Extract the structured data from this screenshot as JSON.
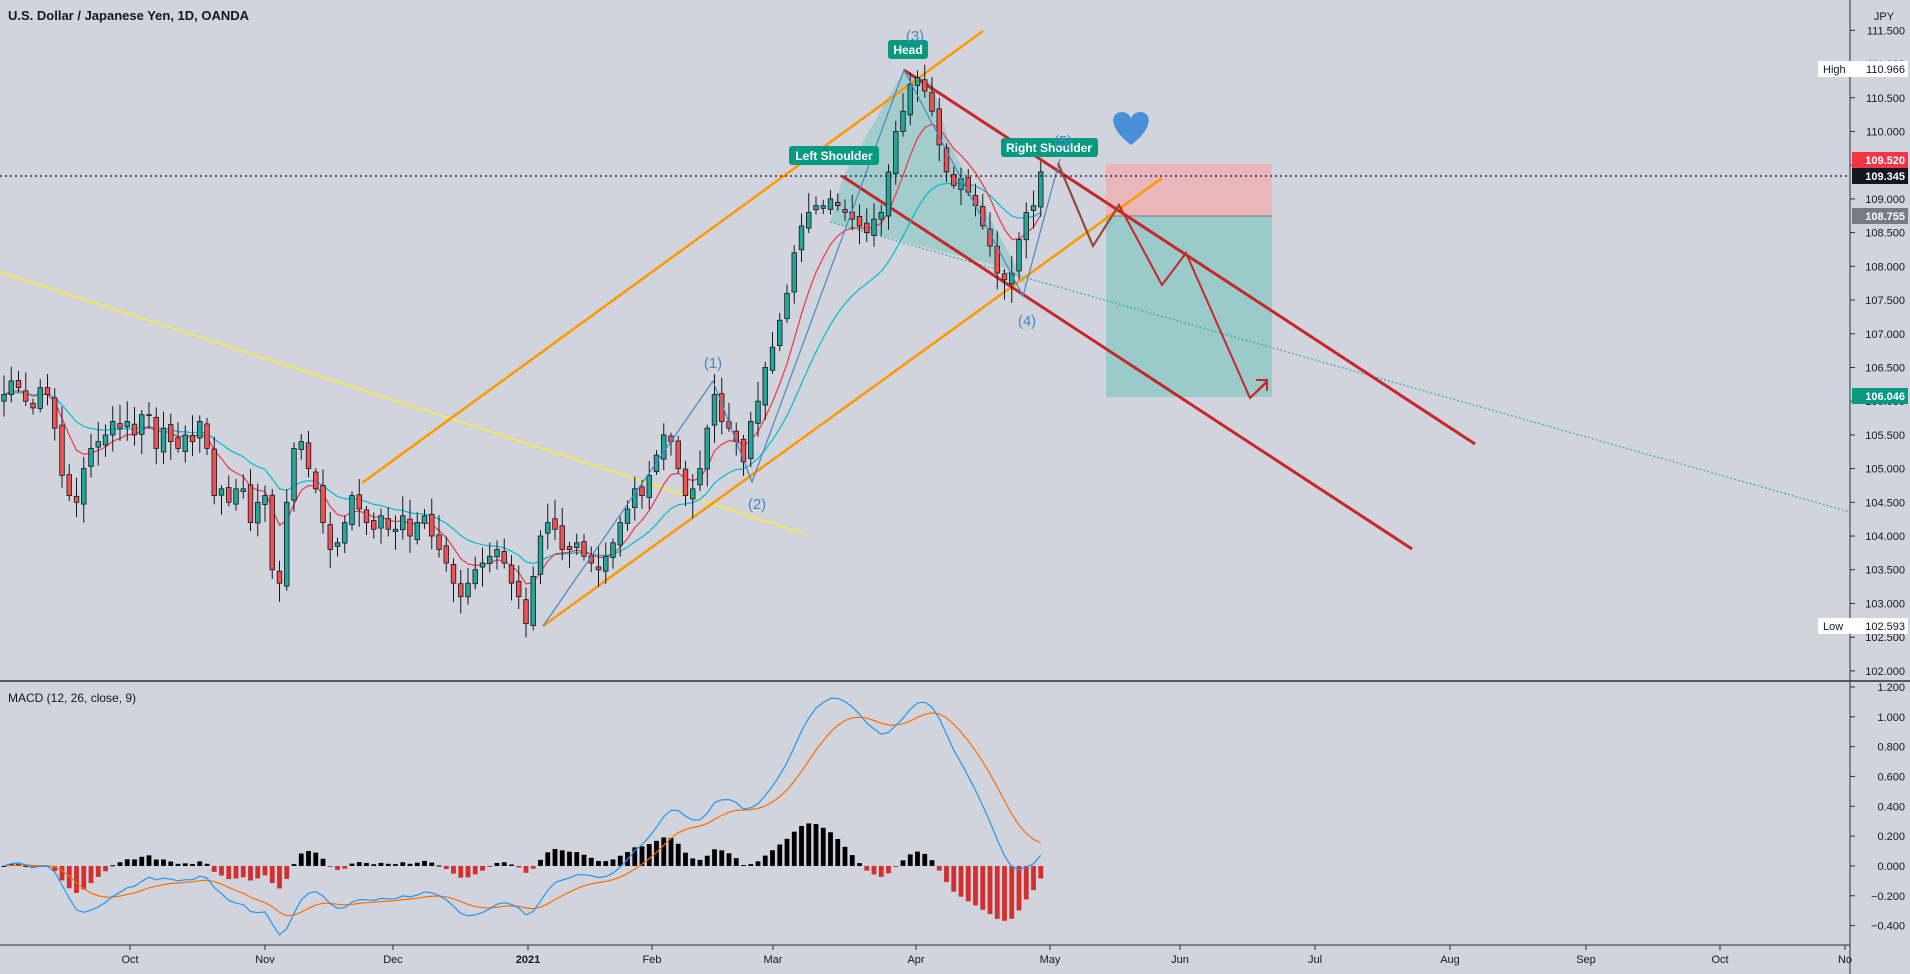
{
  "header": {
    "symbol_title": "U.S. Dollar / Japanese Yen, 1D, OANDA",
    "currency": "JPY",
    "macd_title": "MACD (12, 26, close, 9)"
  },
  "badges": {
    "high": {
      "label": "High",
      "value": "110.966"
    },
    "low": {
      "label": "Low",
      "value": "102.593"
    },
    "red": "109.520",
    "last": "109.345",
    "grey": "108.755",
    "teal": "106.046"
  },
  "pattern_labels": {
    "head": "Head",
    "left_shoulder": "Left Shoulder",
    "right_shoulder": "Right Shoulder",
    "wave_1": "(1)",
    "wave_2": "(2)",
    "wave_3": "(3)",
    "wave_4": "(4)",
    "wave_5": "(5)"
  },
  "chart_data": [
    {
      "type": "candlestick",
      "title": "U.S. Dollar / Japanese Yen, 1D, OANDA",
      "y_unit": "JPY",
      "ylim": [
        101.85,
        111.95
      ],
      "y_ticks": [
        "111.500",
        "111.000",
        "110.500",
        "110.000",
        "109.500",
        "109.000",
        "108.500",
        "108.000",
        "107.500",
        "107.000",
        "106.500",
        "106.000",
        "105.500",
        "105.000",
        "104.500",
        "104.000",
        "103.500",
        "103.000",
        "102.500",
        "102.000"
      ],
      "x_ticks": [
        "Oct",
        "Nov",
        "Dec",
        "2021",
        "Feb",
        "Mar",
        "Apr",
        "May",
        "Jun",
        "Jul",
        "Aug",
        "Sep",
        "Oct",
        "No"
      ],
      "closes": [
        106.1,
        106.3,
        106.2,
        106.0,
        105.9,
        106.2,
        106.1,
        105.6,
        104.9,
        104.6,
        104.5,
        105.0,
        105.3,
        105.4,
        105.5,
        105.7,
        105.6,
        105.7,
        105.5,
        105.8,
        105.8,
        105.3,
        105.6,
        105.4,
        105.3,
        105.5,
        105.4,
        105.7,
        105.3,
        104.6,
        104.7,
        104.5,
        104.7,
        104.7,
        104.2,
        104.5,
        104.6,
        103.5,
        103.3,
        104.5,
        105.3,
        105.4,
        105.0,
        104.7,
        104.2,
        103.8,
        103.9,
        104.2,
        104.6,
        104.4,
        104.2,
        104.1,
        104.3,
        104.1,
        104.1,
        104.3,
        104.0,
        104.2,
        104.3,
        104.0,
        103.8,
        103.6,
        103.3,
        103.1,
        103.3,
        103.5,
        103.6,
        103.7,
        103.8,
        103.6,
        103.3,
        103.1,
        102.7,
        103.4,
        104.0,
        104.2,
        104.1,
        103.8,
        103.8,
        103.9,
        103.7,
        103.6,
        103.5,
        103.7,
        103.9,
        104.2,
        104.4,
        104.7,
        104.6,
        104.9,
        105.2,
        105.5,
        105.4,
        105.0,
        104.6,
        104.7,
        105.0,
        105.6,
        106.1,
        105.7,
        105.6,
        105.4,
        105.1,
        105.7,
        106.0,
        106.5,
        106.8,
        107.2,
        107.6,
        108.2,
        108.6,
        108.8,
        108.9,
        108.9,
        109.0,
        108.9,
        108.8,
        108.7,
        108.6,
        108.5,
        108.7,
        108.8,
        109.4,
        110.0,
        110.3,
        110.7,
        110.8,
        110.6,
        110.3,
        109.8,
        109.4,
        109.2,
        109.3,
        109.1,
        108.9,
        108.6,
        108.3,
        107.9,
        107.8,
        107.9,
        108.4,
        108.8,
        108.9,
        109.4
      ]
    },
    {
      "type": "macd",
      "title": "MACD (12, 26, close, 9)",
      "ylim": [
        -0.53,
        1.24
      ],
      "y_ticks": [
        "1.200",
        "1.000",
        "0.800",
        "0.600",
        "0.400",
        "0.200",
        "0.000",
        "−0.200",
        "−0.400"
      ],
      "series": [
        {
          "name": "MACD",
          "color": "#2196f3"
        },
        {
          "name": "Signal",
          "color": "#ff6d00"
        },
        {
          "name": "Histogram",
          "up_color": "#000000",
          "down_color": "#d32f2f"
        }
      ]
    }
  ],
  "colors": {
    "background": "#d1d4dc",
    "candle_up": "#26a69a",
    "candle_down": "#ef5350",
    "ma_fast": "#f23645",
    "ma_slow": "#00bcd4",
    "channel_orange": "#ff9800",
    "channel_red": "#c62828",
    "trendline_yellow": "#ffeb3b",
    "heart": "#4a90d9",
    "label_green": "#089981",
    "wave_blue": "#4a86c5",
    "stop_zone": "#f7a6a6",
    "target_zone": "#7cc6c0"
  },
  "icons": {
    "heart": "heart-icon",
    "arrow": "arrow-up-right-icon"
  }
}
